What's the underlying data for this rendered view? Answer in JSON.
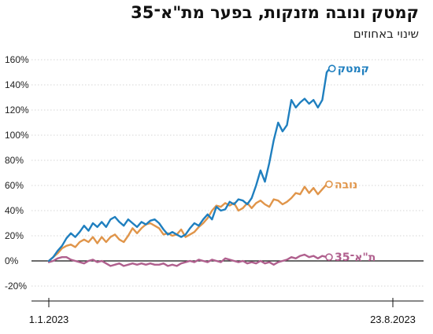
{
  "chart_data": {
    "type": "line",
    "title": "קמטק ונובה מזנקות, בפער מת\"א־35",
    "subtitle": "שינוי באחוזים",
    "x_start": "1.1.2023",
    "x_end": "23.8.2023",
    "x_tick_labels": [
      "1.1.2023",
      "23.8.2023"
    ],
    "ylim": [
      -20,
      160
    ],
    "y_ticks": [
      -20,
      0,
      20,
      40,
      60,
      80,
      100,
      120,
      140,
      160
    ],
    "y_tick_format": "{v}%",
    "grid": true,
    "legend": "inline-labels-at-line-ends",
    "series": [
      {
        "name": "קמטק",
        "color": "#1f7fbf",
        "values": [
          [
            0,
            0
          ],
          [
            3,
            3
          ],
          [
            6,
            8
          ],
          [
            9,
            12
          ],
          [
            12,
            18
          ],
          [
            15,
            22
          ],
          [
            18,
            19
          ],
          [
            21,
            23
          ],
          [
            24,
            28
          ],
          [
            27,
            24
          ],
          [
            30,
            30
          ],
          [
            33,
            27
          ],
          [
            36,
            31
          ],
          [
            39,
            27
          ],
          [
            42,
            33
          ],
          [
            45,
            35
          ],
          [
            48,
            31
          ],
          [
            51,
            28
          ],
          [
            54,
            33
          ],
          [
            57,
            30
          ],
          [
            60,
            27
          ],
          [
            63,
            31
          ],
          [
            66,
            29
          ],
          [
            69,
            32
          ],
          [
            72,
            33
          ],
          [
            75,
            30
          ],
          [
            78,
            25
          ],
          [
            81,
            21
          ],
          [
            84,
            23
          ],
          [
            87,
            21
          ],
          [
            90,
            19
          ],
          [
            93,
            21
          ],
          [
            96,
            26
          ],
          [
            99,
            30
          ],
          [
            102,
            28
          ],
          [
            105,
            33
          ],
          [
            108,
            37
          ],
          [
            111,
            33
          ],
          [
            114,
            43
          ],
          [
            117,
            40
          ],
          [
            120,
            41
          ],
          [
            123,
            47
          ],
          [
            126,
            45
          ],
          [
            129,
            49
          ],
          [
            132,
            48
          ],
          [
            135,
            45
          ],
          [
            138,
            50
          ],
          [
            141,
            60
          ],
          [
            144,
            72
          ],
          [
            147,
            63
          ],
          [
            150,
            78
          ],
          [
            153,
            96
          ],
          [
            156,
            110
          ],
          [
            159,
            103
          ],
          [
            162,
            108
          ],
          [
            165,
            128
          ],
          [
            168,
            122
          ],
          [
            171,
            126
          ],
          [
            174,
            129
          ],
          [
            177,
            125
          ],
          [
            180,
            128
          ],
          [
            183,
            122
          ],
          [
            186,
            128
          ],
          [
            189,
            150
          ],
          [
            191,
            153
          ]
        ]
      },
      {
        "name": "נובה",
        "color": "#e0954a",
        "values": [
          [
            0,
            0
          ],
          [
            3,
            3
          ],
          [
            6,
            6
          ],
          [
            9,
            10
          ],
          [
            12,
            12
          ],
          [
            15,
            13
          ],
          [
            18,
            11
          ],
          [
            21,
            15
          ],
          [
            24,
            17
          ],
          [
            27,
            15
          ],
          [
            30,
            19
          ],
          [
            33,
            14
          ],
          [
            36,
            19
          ],
          [
            39,
            15
          ],
          [
            42,
            19
          ],
          [
            45,
            21
          ],
          [
            48,
            17
          ],
          [
            51,
            15
          ],
          [
            54,
            20
          ],
          [
            57,
            26
          ],
          [
            60,
            22
          ],
          [
            63,
            26
          ],
          [
            66,
            29
          ],
          [
            69,
            30
          ],
          [
            72,
            28
          ],
          [
            75,
            26
          ],
          [
            78,
            21
          ],
          [
            81,
            22
          ],
          [
            84,
            20
          ],
          [
            87,
            21
          ],
          [
            90,
            25
          ],
          [
            93,
            19
          ],
          [
            96,
            21
          ],
          [
            99,
            23
          ],
          [
            102,
            27
          ],
          [
            105,
            30
          ],
          [
            108,
            34
          ],
          [
            111,
            40
          ],
          [
            114,
            44
          ],
          [
            117,
            43
          ],
          [
            120,
            46
          ],
          [
            123,
            44
          ],
          [
            126,
            46
          ],
          [
            129,
            40
          ],
          [
            132,
            42
          ],
          [
            135,
            46
          ],
          [
            138,
            42
          ],
          [
            141,
            46
          ],
          [
            144,
            48
          ],
          [
            147,
            45
          ],
          [
            150,
            43
          ],
          [
            153,
            49
          ],
          [
            156,
            48
          ],
          [
            159,
            45
          ],
          [
            162,
            47
          ],
          [
            165,
            50
          ],
          [
            168,
            54
          ],
          [
            171,
            53
          ],
          [
            174,
            59
          ],
          [
            177,
            54
          ],
          [
            180,
            58
          ],
          [
            183,
            53
          ],
          [
            186,
            57
          ],
          [
            189,
            61
          ]
        ]
      },
      {
        "name": "ת\"א־35",
        "color": "#b0608e",
        "values": [
          [
            0,
            -1
          ],
          [
            3,
            0
          ],
          [
            6,
            2
          ],
          [
            9,
            3
          ],
          [
            12,
            3
          ],
          [
            15,
            1
          ],
          [
            18,
            0
          ],
          [
            21,
            -1
          ],
          [
            24,
            -2
          ],
          [
            27,
            0
          ],
          [
            30,
            1
          ],
          [
            33,
            -1
          ],
          [
            36,
            0
          ],
          [
            39,
            -2
          ],
          [
            42,
            -4
          ],
          [
            45,
            -3
          ],
          [
            48,
            -2
          ],
          [
            51,
            -4
          ],
          [
            54,
            -3
          ],
          [
            57,
            -2
          ],
          [
            60,
            -3
          ],
          [
            63,
            -2
          ],
          [
            66,
            -3
          ],
          [
            69,
            -2
          ],
          [
            72,
            -3
          ],
          [
            75,
            -3
          ],
          [
            78,
            -2
          ],
          [
            81,
            -4
          ],
          [
            84,
            -3
          ],
          [
            87,
            -4
          ],
          [
            90,
            -2
          ],
          [
            93,
            -1
          ],
          [
            96,
            0
          ],
          [
            99,
            -1
          ],
          [
            102,
            1
          ],
          [
            105,
            0
          ],
          [
            108,
            -1
          ],
          [
            111,
            1
          ],
          [
            114,
            0
          ],
          [
            117,
            -1
          ],
          [
            120,
            2
          ],
          [
            123,
            1
          ],
          [
            126,
            0
          ],
          [
            129,
            -1
          ],
          [
            132,
            0
          ],
          [
            135,
            -2
          ],
          [
            138,
            -1
          ],
          [
            141,
            -2
          ],
          [
            144,
            0
          ],
          [
            147,
            -2
          ],
          [
            150,
            -1
          ],
          [
            153,
            -3
          ],
          [
            156,
            -1
          ],
          [
            159,
            0
          ],
          [
            162,
            1
          ],
          [
            165,
            3
          ],
          [
            168,
            2
          ],
          [
            171,
            4
          ],
          [
            174,
            5
          ],
          [
            177,
            3
          ],
          [
            180,
            4
          ],
          [
            183,
            2
          ],
          [
            186,
            4
          ],
          [
            189,
            3
          ]
        ]
      }
    ]
  }
}
